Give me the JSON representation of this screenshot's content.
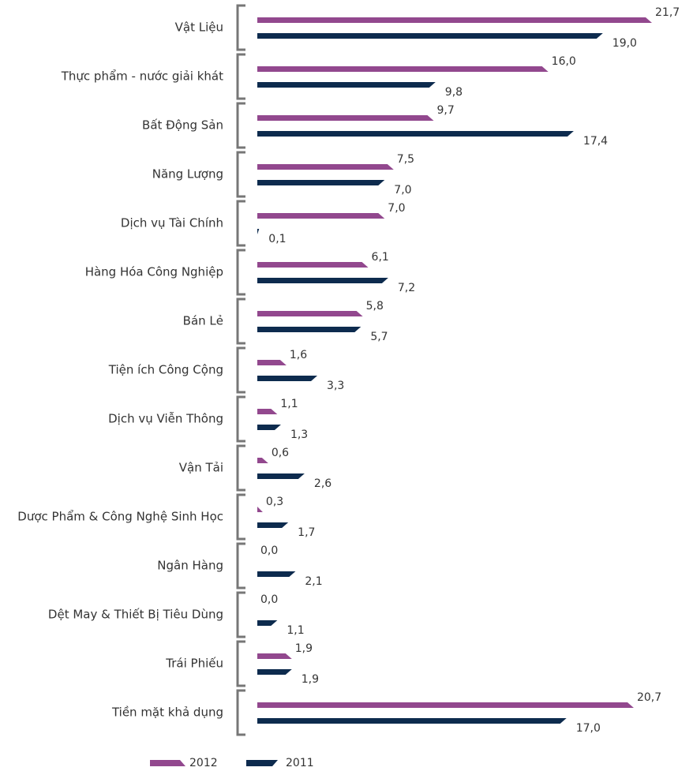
{
  "chart_data": {
    "type": "bar",
    "orientation": "horizontal",
    "categories": [
      "Vật Liệu",
      "Thực phẩm - nước giải khát",
      "Bất Động Sản",
      "Năng Lượng",
      "Dịch vụ Tài Chính",
      "Hàng Hóa Công Nghiệp",
      "Bán Lẻ",
      "Tiện ích Công Cộng",
      "Dịch vụ Viễn Thông",
      "Vận Tải",
      "Dược Phẩm & Công Nghệ Sinh Học",
      "Ngân Hàng",
      "Dệt May & Thiết Bị Tiêu Dùng",
      "Trái Phiếu",
      "Tiền mặt khả dụng"
    ],
    "series": [
      {
        "name": "2012",
        "color": "#92488e",
        "values": [
          21.7,
          16.0,
          9.7,
          7.5,
          7.0,
          6.1,
          5.8,
          1.6,
          1.1,
          0.6,
          0.3,
          0.0,
          0.0,
          1.9,
          20.7
        ],
        "value_labels": [
          "21,7",
          "16,0",
          "9,7",
          "7,5",
          "7,0",
          "6,1",
          "5,8",
          "1,6",
          "1,1",
          "0,6",
          "0,3",
          "0,0",
          "0,0",
          "1,9",
          "20,7"
        ]
      },
      {
        "name": "2011",
        "color": "#0d2b4e",
        "values": [
          19.0,
          9.8,
          17.4,
          7.0,
          0.1,
          7.2,
          5.7,
          3.3,
          1.3,
          2.6,
          1.7,
          2.1,
          1.1,
          1.9,
          17.0
        ],
        "value_labels": [
          "19,0",
          "9,8",
          "17,4",
          "7,0",
          "0,1",
          "7,2",
          "5,7",
          "3,3",
          "1,3",
          "2,6",
          "1,7",
          "2,1",
          "1,1",
          "1,9",
          "17,0"
        ]
      }
    ]
  }
}
